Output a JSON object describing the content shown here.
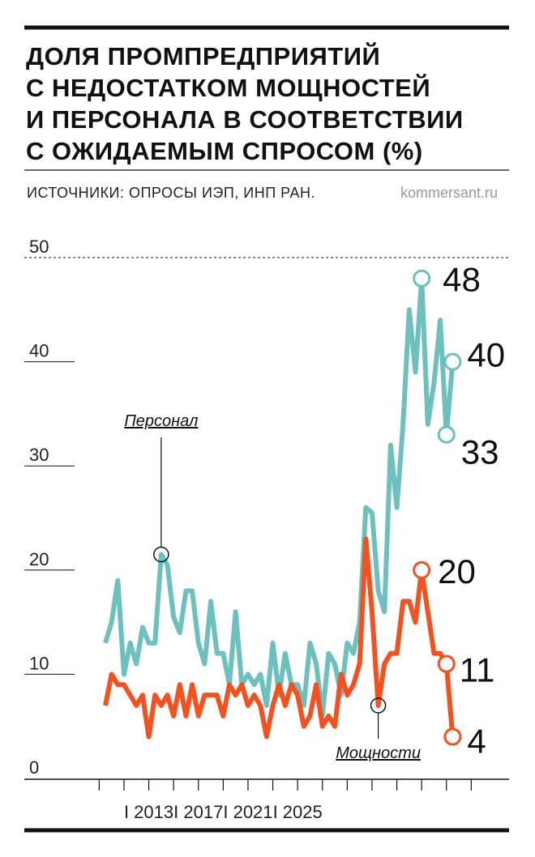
{
  "chart_data": {
    "type": "line",
    "title": [
      "ДОЛЯ ПРОМПРЕДПРИЯТИЙ",
      "С НЕДОСТАТКОМ МОЩНОСТЕЙ",
      "И ПЕРСОНАЛА В СООТВЕТСТВИИ",
      "С ОЖИДАЕМЫМ СПРОСОМ (%)"
    ],
    "source": "ИСТОЧНИКИ: ОПРОСЫ ИЭП, ИНП РАН.",
    "credit": "kommersant.ru",
    "categories": [
      null,
      null,
      null,
      null,
      null,
      null,
      null,
      "I 2013",
      null,
      null,
      null,
      null,
      null,
      null,
      null,
      "I 2017",
      null,
      null,
      null,
      null,
      null,
      null,
      null,
      "I 2021",
      null,
      null,
      null,
      null,
      null,
      null,
      null,
      "I 2025",
      null,
      null,
      null,
      null,
      null,
      null,
      null,
      null,
      null,
      null,
      null,
      null,
      null,
      null,
      null,
      null,
      null,
      null,
      null,
      null,
      null,
      null,
      null,
      null,
      null
    ],
    "ylim": [
      0,
      50
    ],
    "yticks": [
      0,
      10,
      20,
      30,
      40,
      50
    ],
    "series": [
      {
        "name": "Персонал",
        "color": "#6cc0bd",
        "callout": 9,
        "labeled": [
          51,
          55,
          56
        ],
        "values": [
          13,
          15,
          19,
          10,
          13,
          11,
          14.5,
          13,
          13,
          21.5,
          20.5,
          15.5,
          14,
          18,
          18,
          13,
          11,
          17,
          12,
          12,
          9,
          16,
          9,
          10,
          9,
          10,
          7,
          13,
          8,
          12,
          9,
          9,
          7,
          13,
          11,
          6,
          12,
          11,
          8,
          13,
          12,
          15,
          26,
          25.5,
          18,
          16,
          32,
          26,
          34,
          45,
          39,
          48,
          34,
          38,
          44,
          33,
          40
        ]
      },
      {
        "name": "Мощности",
        "color": "#f4511e",
        "callout": 44,
        "labeled": [
          51,
          55,
          56
        ],
        "values": [
          7,
          10,
          9,
          9,
          8,
          7,
          8,
          4,
          8,
          7,
          8,
          6,
          9,
          6,
          9,
          6,
          8,
          8,
          8,
          6,
          9,
          8,
          9,
          7,
          8,
          7,
          4,
          7,
          9,
          7,
          9,
          8,
          5,
          6,
          9,
          5,
          6,
          5,
          10,
          8,
          9,
          11,
          23,
          16,
          7,
          11,
          12,
          12,
          17,
          17,
          15,
          20,
          16,
          12,
          12,
          11,
          4
        ]
      }
    ]
  }
}
